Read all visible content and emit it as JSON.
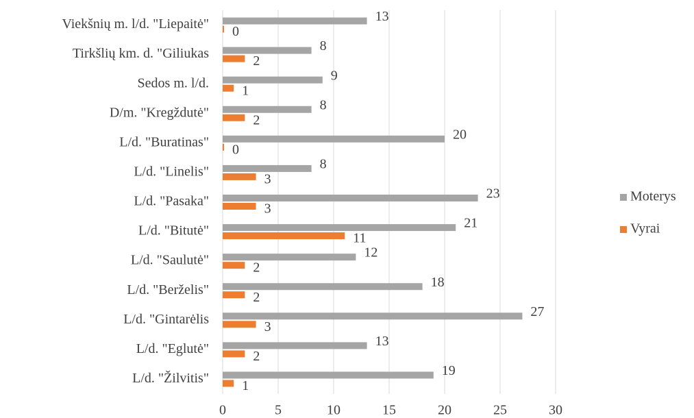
{
  "chart_data": {
    "type": "bar",
    "orientation": "horizontal",
    "categories": [
      "Viekšnių m. l/d. \"Liepaitė\"",
      "Tirkšlių km. d. \"Giliukas",
      "Sedos m. l/d.",
      "D/m. \"Kregždutė\"",
      "L/d. \"Buratinas\"",
      "L/d. \"Linelis\"",
      "L/d. \"Pasaka\"",
      "L/d. \"Bitutė\"",
      "L/d. \"Saulutė\"",
      "L/d. \"Berželis\"",
      "L/d. \"Gintarėlis",
      "L/d. \"Eglutė\"",
      "L/d. \"Žilvitis\""
    ],
    "series": [
      {
        "name": "Moterys",
        "color": "#a5a5a5",
        "values": [
          13,
          8,
          9,
          8,
          20,
          8,
          23,
          21,
          12,
          18,
          27,
          13,
          19
        ]
      },
      {
        "name": "Vyrai",
        "color": "#ed7d31",
        "values": [
          0,
          2,
          1,
          2,
          0,
          3,
          3,
          11,
          2,
          2,
          3,
          2,
          1
        ]
      }
    ],
    "xlim": [
      0,
      30
    ],
    "xticks": [
      0,
      5,
      10,
      15,
      20,
      25,
      30
    ],
    "grid": true,
    "legend": "right"
  }
}
